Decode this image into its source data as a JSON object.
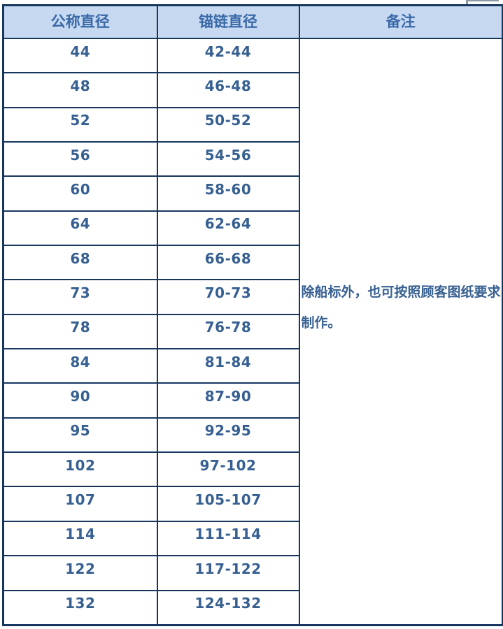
{
  "table": {
    "headers": [
      "公称直径",
      "锚链直径",
      "备注"
    ],
    "rows": [
      [
        "44",
        "42-44"
      ],
      [
        "48",
        "46-48"
      ],
      [
        "52",
        "50-52"
      ],
      [
        "56",
        "54-56"
      ],
      [
        "60",
        "58-60"
      ],
      [
        "64",
        "62-64"
      ],
      [
        "68",
        "66-68"
      ],
      [
        "73",
        "70-73"
      ],
      [
        "78",
        "76-78"
      ],
      [
        "84",
        "81-84"
      ],
      [
        "90",
        "87-90"
      ],
      [
        "95",
        "92-95"
      ],
      [
        "102",
        "97-102"
      ],
      [
        "107",
        "105-107"
      ],
      [
        "114",
        "111-114"
      ],
      [
        "122",
        "117-122"
      ],
      [
        "132",
        "124-132"
      ]
    ],
    "remark": "除船标外，也可按照顾客图纸要求制作。"
  },
  "colors": {
    "header_bg": "#C6D9F1",
    "grid_border": "#17375E",
    "header_text": "#3A69A8",
    "cell_text": "#376092"
  }
}
